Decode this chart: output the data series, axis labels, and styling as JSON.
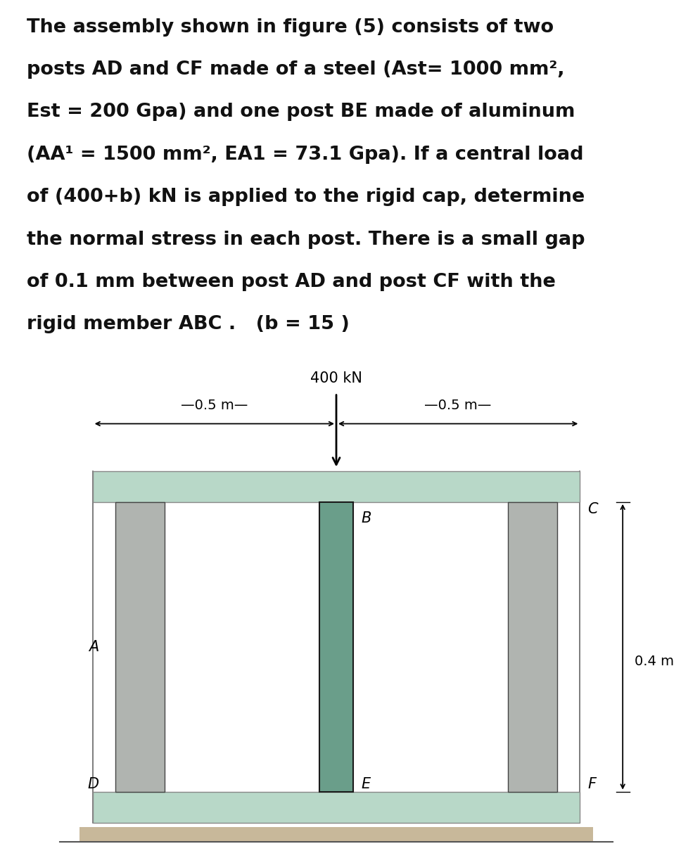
{
  "background_color": "#ffffff",
  "text_block": [
    "The assembly shown in figure (5) consists of two",
    "posts AD and CF made of a steel (Ast= 1000 mm²,",
    "Est = 200 Gpa) and one post BE made of aluminum",
    "(AA¹ = 1500 mm², EA1 = 73.1 Gpa). If a central load",
    "of (400+b) kN is applied to the rigid cap, determine",
    "the normal stress in each post. There is a small gap",
    "of 0.1 mm between post AD and post CF with the",
    "rigid member ABC .   (b = 15 )"
  ],
  "text_fontsize": 19.5,
  "diagram": {
    "cap_color": "#b8d8c8",
    "cap_color2": "#c8e0d0",
    "steel_color": "#b0b4b0",
    "steel_color_dark": "#909490",
    "alum_color": "#6a9e8a",
    "alum_color_dark": "#4a7e6a",
    "ground_color": "#c8b89a",
    "load_label": "400 kN",
    "dim_label_left": "—0.5 m—",
    "dim_label_right": "—0.5 m—",
    "dim_04_label": "0.4 m",
    "label_A": "A",
    "label_B": "B",
    "label_C": "C",
    "label_D": "D",
    "label_E": "E",
    "label_F": "F",
    "label_fontsize": 15,
    "annot_fontsize": 14,
    "load_fontsize": 15
  }
}
